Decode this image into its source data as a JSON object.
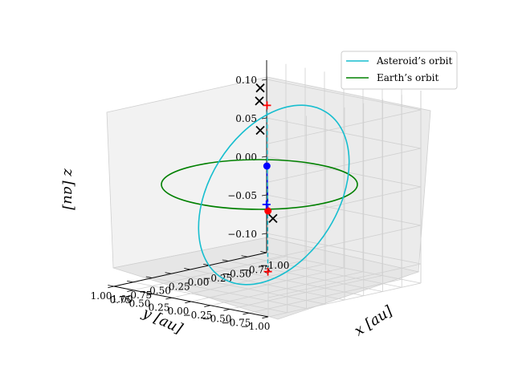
{
  "chart_data": {
    "type": "line",
    "projection": "3d",
    "legend_position": "top-right",
    "grid": true,
    "legend": [
      {
        "label": "Asteroid’s orbit",
        "color": "#17becf"
      },
      {
        "label": "Earth’s orbit",
        "color": "#008000"
      }
    ],
    "axes": {
      "x": {
        "label": "x [au]",
        "lim": [
          -1.0,
          1.0
        ],
        "ticks": [
          "−1.00",
          "−0.75",
          "−0.50",
          "−0.25",
          "0.00",
          "0.25",
          "0.50",
          "0.75",
          "1.00"
        ]
      },
      "y": {
        "label": "y [au]",
        "lim": [
          -1.0,
          1.0
        ],
        "ticks": [
          "1.00",
          "0.75",
          "0.50",
          "0.25",
          "0.00",
          "−0.25",
          "−0.50",
          "−0.75",
          "−1.00"
        ]
      },
      "z": {
        "label": "z [au]",
        "lim": [
          -0.125,
          0.125
        ],
        "ticks": [
          "0.10",
          "0.05",
          "0.00",
          "−0.05",
          "−0.10"
        ]
      }
    },
    "series": [
      {
        "name": "Asteroid’s orbit",
        "kind": "ellipse",
        "color": "#17becf",
        "semi_major_au": 1.0,
        "inclination_deg": 7,
        "style": "solid"
      },
      {
        "name": "Earth’s orbit",
        "kind": "circle",
        "color": "#008000",
        "radius_au": 1.0,
        "z": 0.0,
        "style": "solid"
      }
    ],
    "dashed_lines": [
      {
        "color": "#0000ff",
        "from": [
          -0.7,
          0.7,
          0.0
        ],
        "to": [
          0.7,
          -0.7,
          0.0
        ]
      },
      {
        "color": "#17becf",
        "from": [
          -0.55,
          0.55,
          0.085
        ],
        "to": [
          0.55,
          -0.55,
          -0.085
        ]
      }
    ],
    "markers": [
      {
        "symbol": "circle",
        "color": "#0000ff",
        "at": [
          -0.7,
          0.7,
          0.0
        ]
      },
      {
        "symbol": "circle",
        "color": "#ff0000",
        "at": [
          0.7,
          -0.7,
          0.0
        ]
      },
      {
        "symbol": "plus",
        "color": "#0000ff",
        "at": [
          0.7,
          -0.68,
          0.008
        ]
      },
      {
        "symbol": "plus",
        "color": "#ff0000",
        "at": [
          -0.55,
          0.55,
          0.085
        ]
      },
      {
        "symbol": "plus",
        "color": "#ff0000",
        "at": [
          0.55,
          -0.55,
          -0.085
        ]
      },
      {
        "symbol": "x",
        "color": "#000000",
        "at": [
          -0.33,
          0.42,
          0.115
        ]
      },
      {
        "symbol": "x",
        "color": "#000000",
        "at": [
          -0.4,
          0.5,
          0.095
        ]
      },
      {
        "symbol": "x",
        "color": "#000000",
        "at": [
          -0.33,
          0.42,
          0.06
        ]
      },
      {
        "symbol": "x",
        "color": "#000000",
        "at": [
          0.18,
          -0.25,
          -0.03
        ]
      }
    ]
  }
}
